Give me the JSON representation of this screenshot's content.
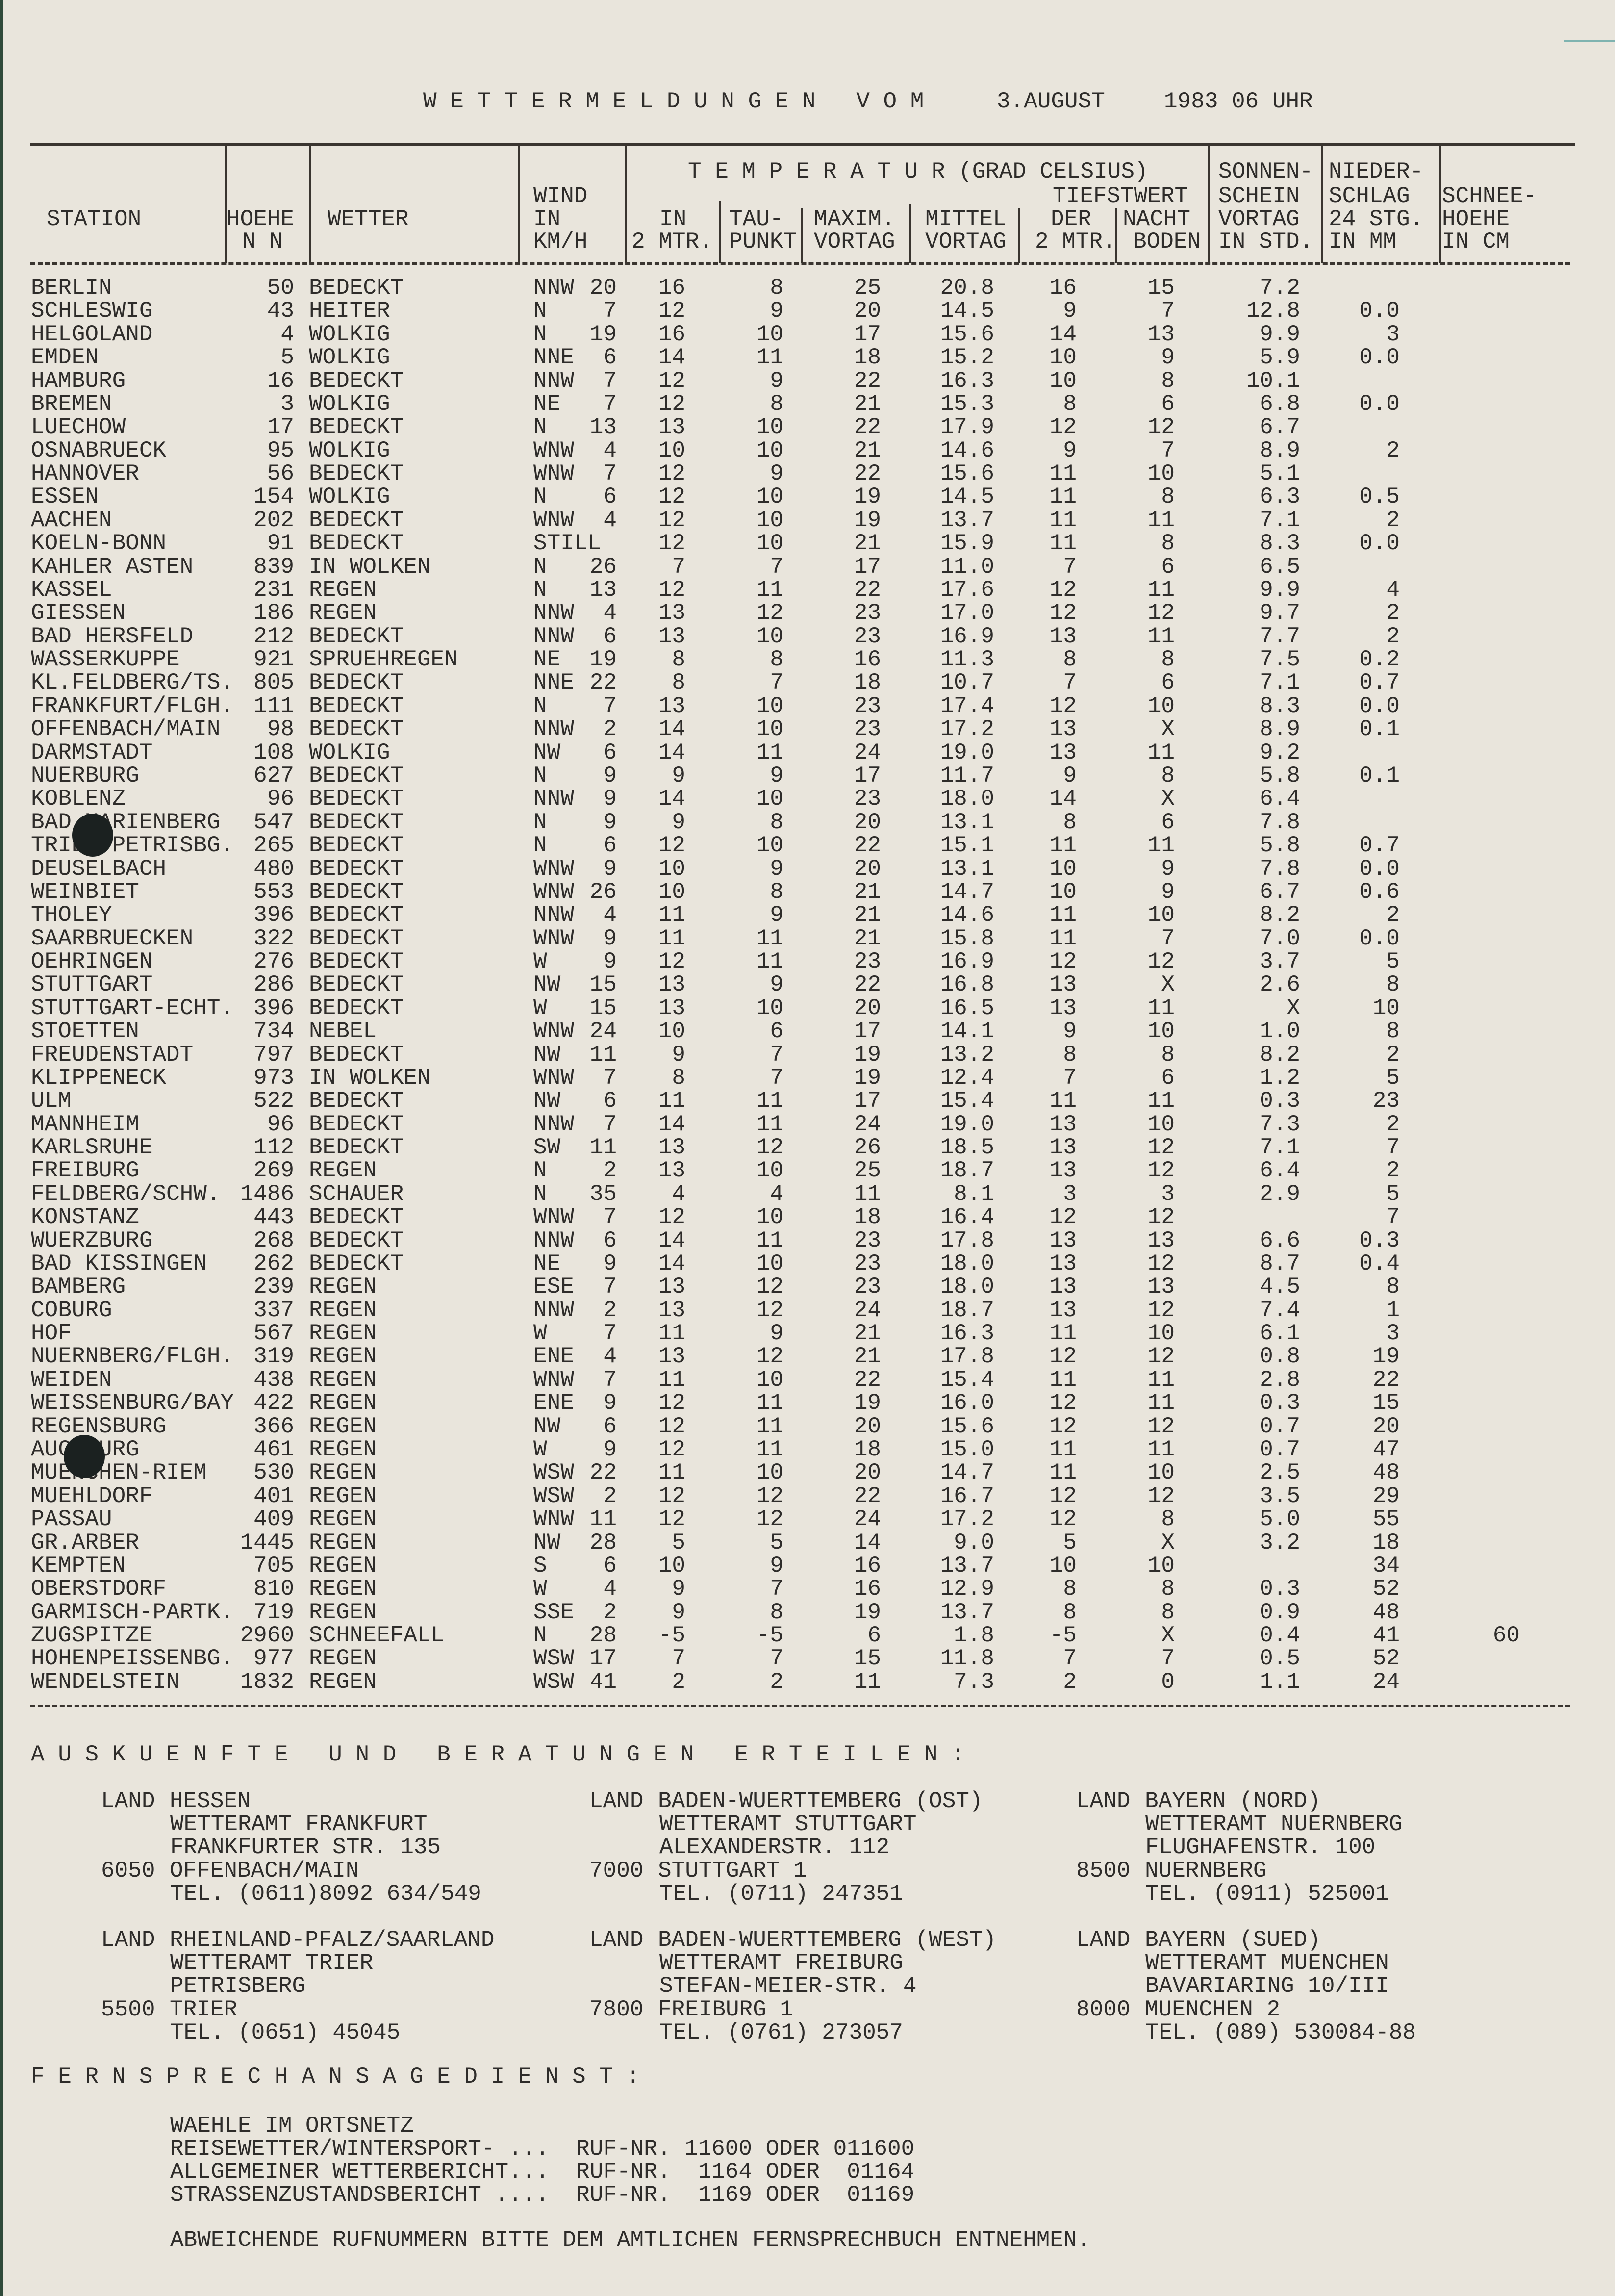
{
  "title": {
    "heading": "W E T T E R M E L D U N G E N   V O M",
    "date": "3.AUGUST",
    "time": "1983 06 UHR"
  },
  "header": {
    "temperatur": "T E M P E R A T U R (GRAD CELSIUS)",
    "sonnen": "SONNEN-",
    "nieder": "NIEDER-",
    "wind": "WIND",
    "tiefstwert": "TIEFSTWERT",
    "schein": "SCHEIN",
    "schlag": "SCHLAG",
    "schnee": "SCHNEE-",
    "station": "STATION",
    "hoehe": "HOEHE",
    "wetter": "WETTER",
    "wind_in": "IN",
    "temp_in": "IN",
    "tau": "TAU-",
    "maxim": "MAXIM.",
    "mittel": "MITTEL",
    "der": "DER",
    "nacht": "NACHT",
    "sonne_vortag": "VORTAG",
    "stg": "24 STG.",
    "schnee_hoehe": "HOEHE",
    "nn": "N N",
    "kmh": "KM/H",
    "temp_2mtr": "2 MTR.",
    "punkt": "PUNKT",
    "max_vortag": "VORTAG",
    "mittel_vortag": "VORTAG",
    "min_2mtr": "2 MTR.",
    "boden": "BODEN",
    "in_std": "IN STD.",
    "in_mm": "IN MM",
    "in_cm": "IN CM"
  },
  "rows": [
    [
      "BERLIN",
      "50",
      "BEDECKT",
      "NNW",
      "20",
      "16",
      "8",
      "25",
      "20.8",
      "16",
      "15",
      "7.2",
      "",
      ""
    ],
    [
      "SCHLESWIG",
      "43",
      "HEITER",
      "N",
      "7",
      "12",
      "9",
      "20",
      "14.5",
      "9",
      "7",
      "12.8",
      "0.0",
      ""
    ],
    [
      "HELGOLAND",
      "4",
      "WOLKIG",
      "N",
      "19",
      "16",
      "10",
      "17",
      "15.6",
      "14",
      "13",
      "9.9",
      "3",
      ""
    ],
    [
      "EMDEN",
      "5",
      "WOLKIG",
      "NNE",
      "6",
      "14",
      "11",
      "18",
      "15.2",
      "10",
      "9",
      "5.9",
      "0.0",
      ""
    ],
    [
      "HAMBURG",
      "16",
      "BEDECKT",
      "NNW",
      "7",
      "12",
      "9",
      "22",
      "16.3",
      "10",
      "8",
      "10.1",
      "",
      ""
    ],
    [
      "BREMEN",
      "3",
      "WOLKIG",
      "NE",
      "7",
      "12",
      "8",
      "21",
      "15.3",
      "8",
      "6",
      "6.8",
      "0.0",
      ""
    ],
    [
      "LUECHOW",
      "17",
      "BEDECKT",
      "N",
      "13",
      "13",
      "10",
      "22",
      "17.9",
      "12",
      "12",
      "6.7",
      "",
      ""
    ],
    [
      "OSNABRUECK",
      "95",
      "WOLKIG",
      "WNW",
      "4",
      "10",
      "10",
      "21",
      "14.6",
      "9",
      "7",
      "8.9",
      "2",
      ""
    ],
    [
      "HANNOVER",
      "56",
      "BEDECKT",
      "WNW",
      "7",
      "12",
      "9",
      "22",
      "15.6",
      "11",
      "10",
      "5.1",
      "",
      ""
    ],
    [
      "ESSEN",
      "154",
      "WOLKIG",
      "N",
      "6",
      "12",
      "10",
      "19",
      "14.5",
      "11",
      "8",
      "6.3",
      "0.5",
      ""
    ],
    [
      "AACHEN",
      "202",
      "BEDECKT",
      "WNW",
      "4",
      "12",
      "10",
      "19",
      "13.7",
      "11",
      "11",
      "7.1",
      "2",
      ""
    ],
    [
      "KOELN-BONN",
      "91",
      "BEDECKT",
      "STILL",
      "",
      "12",
      "10",
      "21",
      "15.9",
      "11",
      "8",
      "8.3",
      "0.0",
      ""
    ],
    [
      "KAHLER ASTEN",
      "839",
      "IN WOLKEN",
      "N",
      "26",
      "7",
      "7",
      "17",
      "11.0",
      "7",
      "6",
      "6.5",
      "",
      ""
    ],
    [
      "KASSEL",
      "231",
      "REGEN",
      "N",
      "13",
      "12",
      "11",
      "22",
      "17.6",
      "12",
      "11",
      "9.9",
      "4",
      ""
    ],
    [
      "GIESSEN",
      "186",
      "REGEN",
      "NNW",
      "4",
      "13",
      "12",
      "23",
      "17.0",
      "12",
      "12",
      "9.7",
      "2",
      ""
    ],
    [
      "BAD HERSFELD",
      "212",
      "BEDECKT",
      "NNW",
      "6",
      "13",
      "10",
      "23",
      "16.9",
      "13",
      "11",
      "7.7",
      "2",
      ""
    ],
    [
      "WASSERKUPPE",
      "921",
      "SPRUEHREGEN",
      "NE",
      "19",
      "8",
      "8",
      "16",
      "11.3",
      "8",
      "8",
      "7.5",
      "0.2",
      ""
    ],
    [
      "KL.FELDBERG/TS.",
      "805",
      "BEDECKT",
      "NNE",
      "22",
      "8",
      "7",
      "18",
      "10.7",
      "7",
      "6",
      "7.1",
      "0.7",
      ""
    ],
    [
      "FRANKFURT/FLGH.",
      "111",
      "BEDECKT",
      "N",
      "7",
      "13",
      "10",
      "23",
      "17.4",
      "12",
      "10",
      "8.3",
      "0.0",
      ""
    ],
    [
      "OFFENBACH/MAIN",
      "98",
      "BEDECKT",
      "NNW",
      "2",
      "14",
      "10",
      "23",
      "17.2",
      "13",
      "X",
      "8.9",
      "0.1",
      ""
    ],
    [
      "DARMSTADT",
      "108",
      "WOLKIG",
      "NW",
      "6",
      "14",
      "11",
      "24",
      "19.0",
      "13",
      "11",
      "9.2",
      "",
      ""
    ],
    [
      "NUERBURG",
      "627",
      "BEDECKT",
      "N",
      "9",
      "9",
      "9",
      "17",
      "11.7",
      "9",
      "8",
      "5.8",
      "0.1",
      ""
    ],
    [
      "KOBLENZ",
      "96",
      "BEDECKT",
      "NNW",
      "9",
      "14",
      "10",
      "23",
      "18.0",
      "14",
      "X",
      "6.4",
      "",
      ""
    ],
    [
      "BAD MARIENBERG",
      "547",
      "BEDECKT",
      "N",
      "9",
      "9",
      "8",
      "20",
      "13.1",
      "8",
      "6",
      "7.8",
      "",
      ""
    ],
    [
      "TRIER-PETRISBG.",
      "265",
      "BEDECKT",
      "N",
      "6",
      "12",
      "10",
      "22",
      "15.1",
      "11",
      "11",
      "5.8",
      "0.7",
      ""
    ],
    [
      "DEUSELBACH",
      "480",
      "BEDECKT",
      "WNW",
      "9",
      "10",
      "9",
      "20",
      "13.1",
      "10",
      "9",
      "7.8",
      "0.0",
      ""
    ],
    [
      "WEINBIET",
      "553",
      "BEDECKT",
      "WNW",
      "26",
      "10",
      "8",
      "21",
      "14.7",
      "10",
      "9",
      "6.7",
      "0.6",
      ""
    ],
    [
      "THOLEY",
      "396",
      "BEDECKT",
      "NNW",
      "4",
      "11",
      "9",
      "21",
      "14.6",
      "11",
      "10",
      "8.2",
      "2",
      ""
    ],
    [
      "SAARBRUECKEN",
      "322",
      "BEDECKT",
      "WNW",
      "9",
      "11",
      "11",
      "21",
      "15.8",
      "11",
      "7",
      "7.0",
      "0.0",
      ""
    ],
    [
      "OEHRINGEN",
      "276",
      "BEDECKT",
      "W",
      "9",
      "12",
      "11",
      "23",
      "16.9",
      "12",
      "12",
      "3.7",
      "5",
      ""
    ],
    [
      "STUTTGART",
      "286",
      "BEDECKT",
      "NW",
      "15",
      "13",
      "9",
      "22",
      "16.8",
      "13",
      "X",
      "2.6",
      "8",
      ""
    ],
    [
      "STUTTGART-ECHT.",
      "396",
      "BEDECKT",
      "W",
      "15",
      "13",
      "10",
      "20",
      "16.5",
      "13",
      "11",
      "X",
      "10",
      ""
    ],
    [
      "STOETTEN",
      "734",
      "NEBEL",
      "WNW",
      "24",
      "10",
      "6",
      "17",
      "14.1",
      "9",
      "10",
      "1.0",
      "8",
      ""
    ],
    [
      "FREUDENSTADT",
      "797",
      "BEDECKT",
      "NW",
      "11",
      "9",
      "7",
      "19",
      "13.2",
      "8",
      "8",
      "8.2",
      "2",
      ""
    ],
    [
      "KLIPPENECK",
      "973",
      "IN WOLKEN",
      "WNW",
      "7",
      "8",
      "7",
      "19",
      "12.4",
      "7",
      "6",
      "1.2",
      "5",
      ""
    ],
    [
      "ULM",
      "522",
      "BEDECKT",
      "NW",
      "6",
      "11",
      "11",
      "17",
      "15.4",
      "11",
      "11",
      "0.3",
      "23",
      ""
    ],
    [
      "MANNHEIM",
      "96",
      "BEDECKT",
      "NNW",
      "7",
      "14",
      "11",
      "24",
      "19.0",
      "13",
      "10",
      "7.3",
      "2",
      ""
    ],
    [
      "KARLSRUHE",
      "112",
      "BEDECKT",
      "SW",
      "11",
      "13",
      "12",
      "26",
      "18.5",
      "13",
      "12",
      "7.1",
      "7",
      ""
    ],
    [
      "FREIBURG",
      "269",
      "REGEN",
      "N",
      "2",
      "13",
      "10",
      "25",
      "18.7",
      "13",
      "12",
      "6.4",
      "2",
      ""
    ],
    [
      "FELDBERG/SCHW.",
      "1486",
      "SCHAUER",
      "N",
      "35",
      "4",
      "4",
      "11",
      "8.1",
      "3",
      "3",
      "2.9",
      "5",
      ""
    ],
    [
      "KONSTANZ",
      "443",
      "BEDECKT",
      "WNW",
      "7",
      "12",
      "10",
      "18",
      "16.4",
      "12",
      "12",
      "",
      "7",
      ""
    ],
    [
      "WUERZBURG",
      "268",
      "BEDECKT",
      "NNW",
      "6",
      "14",
      "11",
      "23",
      "17.8",
      "13",
      "13",
      "6.6",
      "0.3",
      ""
    ],
    [
      "BAD KISSINGEN",
      "262",
      "BEDECKT",
      "NE",
      "9",
      "14",
      "10",
      "23",
      "18.0",
      "13",
      "12",
      "8.7",
      "0.4",
      ""
    ],
    [
      "BAMBERG",
      "239",
      "REGEN",
      "ESE",
      "7",
      "13",
      "12",
      "23",
      "18.0",
      "13",
      "13",
      "4.5",
      "8",
      ""
    ],
    [
      "COBURG",
      "337",
      "REGEN",
      "NNW",
      "2",
      "13",
      "12",
      "24",
      "18.7",
      "13",
      "12",
      "7.4",
      "1",
      ""
    ],
    [
      "HOF",
      "567",
      "REGEN",
      "W",
      "7",
      "11",
      "9",
      "21",
      "16.3",
      "11",
      "10",
      "6.1",
      "3",
      ""
    ],
    [
      "NUERNBERG/FLGH.",
      "319",
      "REGEN",
      "ENE",
      "4",
      "13",
      "12",
      "21",
      "17.8",
      "12",
      "12",
      "0.8",
      "19",
      ""
    ],
    [
      "WEIDEN",
      "438",
      "REGEN",
      "WNW",
      "7",
      "11",
      "10",
      "22",
      "15.4",
      "11",
      "11",
      "2.8",
      "22",
      ""
    ],
    [
      "WEISSENBURG/BAY",
      "422",
      "REGEN",
      "ENE",
      "9",
      "12",
      "11",
      "19",
      "16.0",
      "12",
      "11",
      "0.3",
      "15",
      ""
    ],
    [
      "REGENSBURG",
      "366",
      "REGEN",
      "NW",
      "6",
      "12",
      "11",
      "20",
      "15.6",
      "12",
      "12",
      "0.7",
      "20",
      ""
    ],
    [
      "AUGSBURG",
      "461",
      "REGEN",
      "W",
      "9",
      "12",
      "11",
      "18",
      "15.0",
      "11",
      "11",
      "0.7",
      "47",
      ""
    ],
    [
      "MUENCHEN-RIEM",
      "530",
      "REGEN",
      "WSW",
      "22",
      "11",
      "10",
      "20",
      "14.7",
      "11",
      "10",
      "2.5",
      "48",
      ""
    ],
    [
      "MUEHLDORF",
      "401",
      "REGEN",
      "WSW",
      "2",
      "12",
      "12",
      "22",
      "16.7",
      "12",
      "12",
      "3.5",
      "29",
      ""
    ],
    [
      "PASSAU",
      "409",
      "REGEN",
      "WNW",
      "11",
      "12",
      "12",
      "24",
      "17.2",
      "12",
      "8",
      "5.0",
      "55",
      ""
    ],
    [
      "GR.ARBER",
      "1445",
      "REGEN",
      "NW",
      "28",
      "5",
      "5",
      "14",
      "9.0",
      "5",
      "X",
      "3.2",
      "18",
      ""
    ],
    [
      "KEMPTEN",
      "705",
      "REGEN",
      "S",
      "6",
      "10",
      "9",
      "16",
      "13.7",
      "10",
      "10",
      "",
      "34",
      ""
    ],
    [
      "OBERSTDORF",
      "810",
      "REGEN",
      "W",
      "4",
      "9",
      "7",
      "16",
      "12.9",
      "8",
      "8",
      "0.3",
      "52",
      ""
    ],
    [
      "GARMISCH-PARTK.",
      "719",
      "REGEN",
      "SSE",
      "2",
      "9",
      "8",
      "19",
      "13.7",
      "8",
      "8",
      "0.9",
      "48",
      ""
    ],
    [
      "ZUGSPITZE",
      "2960",
      "SCHNEEFALL",
      "N",
      "28",
      "-5",
      "-5",
      "6",
      "1.8",
      "-5",
      "X",
      "0.4",
      "41",
      "60"
    ],
    [
      "HOHENPEISSENBG.",
      "977",
      "REGEN",
      "WSW",
      "17",
      "7",
      "7",
      "15",
      "11.8",
      "7",
      "7",
      "0.5",
      "52",
      ""
    ],
    [
      "WENDELSTEIN",
      "1832",
      "REGEN",
      "WSW",
      "41",
      "2",
      "2",
      "11",
      "7.3",
      "2",
      "0",
      "1.1",
      "24",
      ""
    ]
  ],
  "auskuenfte": {
    "heading": "A U S K U E N F T E   U N D   B E R A T U N G E N   E R T E I L E N :",
    "offices": [
      {
        "land": "LAND",
        "region": "HESSEN",
        "amt": "WETTERAMT FRANKFURT",
        "street": "FRANKFURTER STR. 135",
        "plz": "6050",
        "city": "OFFENBACH/MAIN",
        "tel": "TEL. (0611)8092 634/549"
      },
      {
        "land": "LAND",
        "region": "BADEN-WUERTTEMBERG (OST)",
        "amt": "WETTERAMT STUTTGART",
        "street": "ALEXANDERSTR. 112",
        "plz": "7000",
        "city": "STUTTGART 1",
        "tel": "TEL. (0711) 247351"
      },
      {
        "land": "LAND",
        "region": "BAYERN (NORD)",
        "amt": "WETTERAMT NUERNBERG",
        "street": "FLUGHAFENSTR. 100",
        "plz": "8500",
        "city": "NUERNBERG",
        "tel": "TEL. (0911) 525001"
      },
      {
        "land": "LAND",
        "region": "RHEINLAND-PFALZ/SAARLAND",
        "amt": "WETTERAMT TRIER",
        "street": "PETRISBERG",
        "plz": "5500",
        "city": "TRIER",
        "tel": "TEL. (0651) 45045"
      },
      {
        "land": "LAND",
        "region": "BADEN-WUERTTEMBERG (WEST)",
        "amt": "WETTERAMT FREIBURG",
        "street": "STEFAN-MEIER-STR. 4",
        "plz": "7800",
        "city": "FREIBURG 1",
        "tel": "TEL. (0761) 273057"
      },
      {
        "land": "LAND",
        "region": "BAYERN (SUED)",
        "amt": "WETTERAMT MUENCHEN",
        "street": "BAVARIARING 10/III",
        "plz": "8000",
        "city": "MUENCHEN 2",
        "tel": "TEL. (089) 530084-88"
      }
    ]
  },
  "fernsprech": {
    "heading": "F E R N S P R E C H A N S A G E D I E N S T :",
    "intro": "WAEHLE IM ORTSNETZ",
    "lines": [
      "REISEWETTER/WINTERSPORT- ...  RUF-NR. 11600 ODER 011600",
      "ALLGEMEINER WETTERBERICHT...  RUF-NR.  1164 ODER  01164",
      "STRASSENZUSTANDSBERICHT ....  RUF-NR.  1169 ODER  01169"
    ],
    "footer": "ABWEICHENDE RUFNUMMERN BITTE DEM AMTLICHEN FERNSPRECHBUCH ENTNEHMEN."
  }
}
